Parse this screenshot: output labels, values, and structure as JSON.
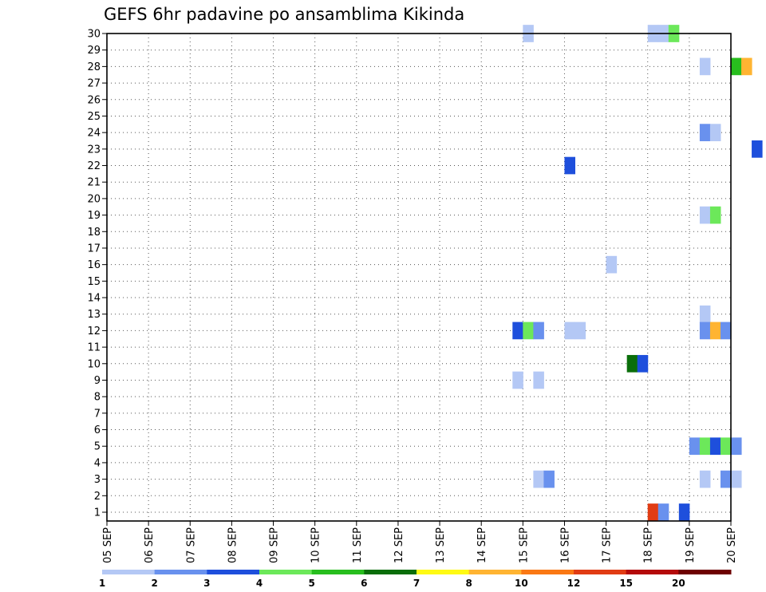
{
  "chart_data": {
    "type": "heatmap",
    "title": "GEFS 6hr padavine po ansamblima Kikinda",
    "x_ticks": [
      "05 SEP",
      "06 SEP",
      "07 SEP",
      "08 SEP",
      "09 SEP",
      "10 SEP",
      "11 SEP",
      "12 SEP",
      "13 SEP",
      "14 SEP",
      "15 SEP",
      "16 SEP",
      "17 SEP",
      "18 SEP",
      "19 SEP",
      "20 SEP"
    ],
    "y_ticks": [
      "1",
      "2",
      "3",
      "4",
      "5",
      "6",
      "7",
      "8",
      "9",
      "10",
      "11",
      "12",
      "13",
      "14",
      "15",
      "16",
      "17",
      "18",
      "19",
      "20",
      "21",
      "22",
      "23",
      "24",
      "25",
      "26",
      "27",
      "28",
      "29",
      "30"
    ],
    "grid": true,
    "legend_placement": "bottom",
    "color_scale": {
      "labels": [
        "1",
        "2",
        "3",
        "4",
        "5",
        "6",
        "7",
        "8",
        "10",
        "12",
        "15",
        "20"
      ],
      "colors": [
        "#b4c8f5",
        "#6991ee",
        "#1e4fdc",
        "#6ce85a",
        "#28be1e",
        "#0a6e0a",
        "#fffa14",
        "#ffb432",
        "#fa7814",
        "#e13c14",
        "#b40a0a",
        "#6e0000"
      ]
    },
    "cells": [
      {
        "member": 30,
        "time": "15 SEP 00Z",
        "value": 1
      },
      {
        "member": 30,
        "time": "18 SEP 00Z",
        "value": 1
      },
      {
        "member": 30,
        "time": "18 SEP 06Z",
        "value": 1
      },
      {
        "member": 30,
        "time": "18 SEP 12Z",
        "value": 4
      },
      {
        "member": 28,
        "time": "19 SEP 06Z",
        "value": 1
      },
      {
        "member": 28,
        "time": "20 SEP 00Z",
        "value": 5
      },
      {
        "member": 28,
        "time": "20 SEP 06Z",
        "value": 8
      },
      {
        "member": 24,
        "time": "19 SEP 06Z",
        "value": 2
      },
      {
        "member": 24,
        "time": "19 SEP 12Z",
        "value": 1
      },
      {
        "member": 23,
        "time": "20 SEP 12Z",
        "value": 3
      },
      {
        "member": 22,
        "time": "16 SEP 00Z",
        "value": 3
      },
      {
        "member": 19,
        "time": "19 SEP 06Z",
        "value": 1
      },
      {
        "member": 19,
        "time": "19 SEP 12Z",
        "value": 4
      },
      {
        "member": 16,
        "time": "17 SEP 00Z",
        "value": 1
      },
      {
        "member": 13,
        "time": "19 SEP 06Z",
        "value": 1
      },
      {
        "member": 12,
        "time": "14 SEP 18Z",
        "value": 3
      },
      {
        "member": 12,
        "time": "15 SEP 00Z",
        "value": 4
      },
      {
        "member": 12,
        "time": "15 SEP 06Z",
        "value": 2
      },
      {
        "member": 12,
        "time": "16 SEP 00Z",
        "value": 1
      },
      {
        "member": 12,
        "time": "16 SEP 06Z",
        "value": 1
      },
      {
        "member": 12,
        "time": "19 SEP 06Z",
        "value": 2
      },
      {
        "member": 12,
        "time": "19 SEP 12Z",
        "value": 8
      },
      {
        "member": 12,
        "time": "19 SEP 18Z",
        "value": 2
      },
      {
        "member": 10,
        "time": "17 SEP 12Z",
        "value": 6
      },
      {
        "member": 10,
        "time": "17 SEP 18Z",
        "value": 3
      },
      {
        "member": 9,
        "time": "14 SEP 18Z",
        "value": 1
      },
      {
        "member": 9,
        "time": "15 SEP 06Z",
        "value": 1
      },
      {
        "member": 5,
        "time": "19 SEP 00Z",
        "value": 2
      },
      {
        "member": 5,
        "time": "19 SEP 06Z",
        "value": 4
      },
      {
        "member": 5,
        "time": "19 SEP 12Z",
        "value": 3
      },
      {
        "member": 5,
        "time": "19 SEP 18Z",
        "value": 4
      },
      {
        "member": 5,
        "time": "20 SEP 00Z",
        "value": 2
      },
      {
        "member": 3,
        "time": "15 SEP 06Z",
        "value": 1
      },
      {
        "member": 3,
        "time": "15 SEP 12Z",
        "value": 2
      },
      {
        "member": 3,
        "time": "19 SEP 06Z",
        "value": 1
      },
      {
        "member": 3,
        "time": "19 SEP 18Z",
        "value": 2
      },
      {
        "member": 3,
        "time": "20 SEP 00Z",
        "value": 1
      },
      {
        "member": 1,
        "time": "18 SEP 00Z",
        "value": 13
      },
      {
        "member": 1,
        "time": "18 SEP 06Z",
        "value": 2
      },
      {
        "member": 1,
        "time": "18 SEP 18Z",
        "value": 3
      }
    ]
  }
}
